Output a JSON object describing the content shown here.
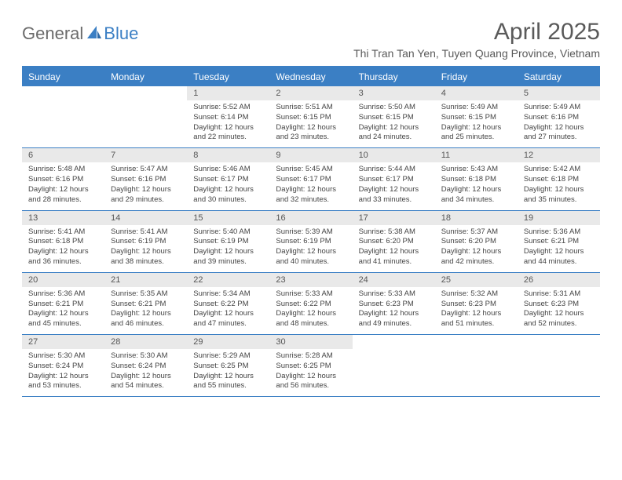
{
  "logo": {
    "text1": "General",
    "text2": "Blue"
  },
  "title": "April 2025",
  "location": "Thi Tran Tan Yen, Tuyen Quang Province, Vietnam",
  "colors": {
    "accent": "#3b7fc4",
    "header_bg": "#3b7fc4",
    "daynum_bg": "#e9e9e9",
    "text": "#444"
  },
  "day_labels": [
    "Sunday",
    "Monday",
    "Tuesday",
    "Wednesday",
    "Thursday",
    "Friday",
    "Saturday"
  ],
  "weeks": [
    [
      {
        "blank": true
      },
      {
        "blank": true
      },
      {
        "n": "1",
        "sr": "5:52 AM",
        "ss": "6:14 PM",
        "dl": "12 hours and 22 minutes."
      },
      {
        "n": "2",
        "sr": "5:51 AM",
        "ss": "6:15 PM",
        "dl": "12 hours and 23 minutes."
      },
      {
        "n": "3",
        "sr": "5:50 AM",
        "ss": "6:15 PM",
        "dl": "12 hours and 24 minutes."
      },
      {
        "n": "4",
        "sr": "5:49 AM",
        "ss": "6:15 PM",
        "dl": "12 hours and 25 minutes."
      },
      {
        "n": "5",
        "sr": "5:49 AM",
        "ss": "6:16 PM",
        "dl": "12 hours and 27 minutes."
      }
    ],
    [
      {
        "n": "6",
        "sr": "5:48 AM",
        "ss": "6:16 PM",
        "dl": "12 hours and 28 minutes."
      },
      {
        "n": "7",
        "sr": "5:47 AM",
        "ss": "6:16 PM",
        "dl": "12 hours and 29 minutes."
      },
      {
        "n": "8",
        "sr": "5:46 AM",
        "ss": "6:17 PM",
        "dl": "12 hours and 30 minutes."
      },
      {
        "n": "9",
        "sr": "5:45 AM",
        "ss": "6:17 PM",
        "dl": "12 hours and 32 minutes."
      },
      {
        "n": "10",
        "sr": "5:44 AM",
        "ss": "6:17 PM",
        "dl": "12 hours and 33 minutes."
      },
      {
        "n": "11",
        "sr": "5:43 AM",
        "ss": "6:18 PM",
        "dl": "12 hours and 34 minutes."
      },
      {
        "n": "12",
        "sr": "5:42 AM",
        "ss": "6:18 PM",
        "dl": "12 hours and 35 minutes."
      }
    ],
    [
      {
        "n": "13",
        "sr": "5:41 AM",
        "ss": "6:18 PM",
        "dl": "12 hours and 36 minutes."
      },
      {
        "n": "14",
        "sr": "5:41 AM",
        "ss": "6:19 PM",
        "dl": "12 hours and 38 minutes."
      },
      {
        "n": "15",
        "sr": "5:40 AM",
        "ss": "6:19 PM",
        "dl": "12 hours and 39 minutes."
      },
      {
        "n": "16",
        "sr": "5:39 AM",
        "ss": "6:19 PM",
        "dl": "12 hours and 40 minutes."
      },
      {
        "n": "17",
        "sr": "5:38 AM",
        "ss": "6:20 PM",
        "dl": "12 hours and 41 minutes."
      },
      {
        "n": "18",
        "sr": "5:37 AM",
        "ss": "6:20 PM",
        "dl": "12 hours and 42 minutes."
      },
      {
        "n": "19",
        "sr": "5:36 AM",
        "ss": "6:21 PM",
        "dl": "12 hours and 44 minutes."
      }
    ],
    [
      {
        "n": "20",
        "sr": "5:36 AM",
        "ss": "6:21 PM",
        "dl": "12 hours and 45 minutes."
      },
      {
        "n": "21",
        "sr": "5:35 AM",
        "ss": "6:21 PM",
        "dl": "12 hours and 46 minutes."
      },
      {
        "n": "22",
        "sr": "5:34 AM",
        "ss": "6:22 PM",
        "dl": "12 hours and 47 minutes."
      },
      {
        "n": "23",
        "sr": "5:33 AM",
        "ss": "6:22 PM",
        "dl": "12 hours and 48 minutes."
      },
      {
        "n": "24",
        "sr": "5:33 AM",
        "ss": "6:23 PM",
        "dl": "12 hours and 49 minutes."
      },
      {
        "n": "25",
        "sr": "5:32 AM",
        "ss": "6:23 PM",
        "dl": "12 hours and 51 minutes."
      },
      {
        "n": "26",
        "sr": "5:31 AM",
        "ss": "6:23 PM",
        "dl": "12 hours and 52 minutes."
      }
    ],
    [
      {
        "n": "27",
        "sr": "5:30 AM",
        "ss": "6:24 PM",
        "dl": "12 hours and 53 minutes."
      },
      {
        "n": "28",
        "sr": "5:30 AM",
        "ss": "6:24 PM",
        "dl": "12 hours and 54 minutes."
      },
      {
        "n": "29",
        "sr": "5:29 AM",
        "ss": "6:25 PM",
        "dl": "12 hours and 55 minutes."
      },
      {
        "n": "30",
        "sr": "5:28 AM",
        "ss": "6:25 PM",
        "dl": "12 hours and 56 minutes."
      },
      {
        "blank": true
      },
      {
        "blank": true
      },
      {
        "blank": true
      }
    ]
  ],
  "labels": {
    "sunrise": "Sunrise:",
    "sunset": "Sunset:",
    "daylight": "Daylight:"
  }
}
